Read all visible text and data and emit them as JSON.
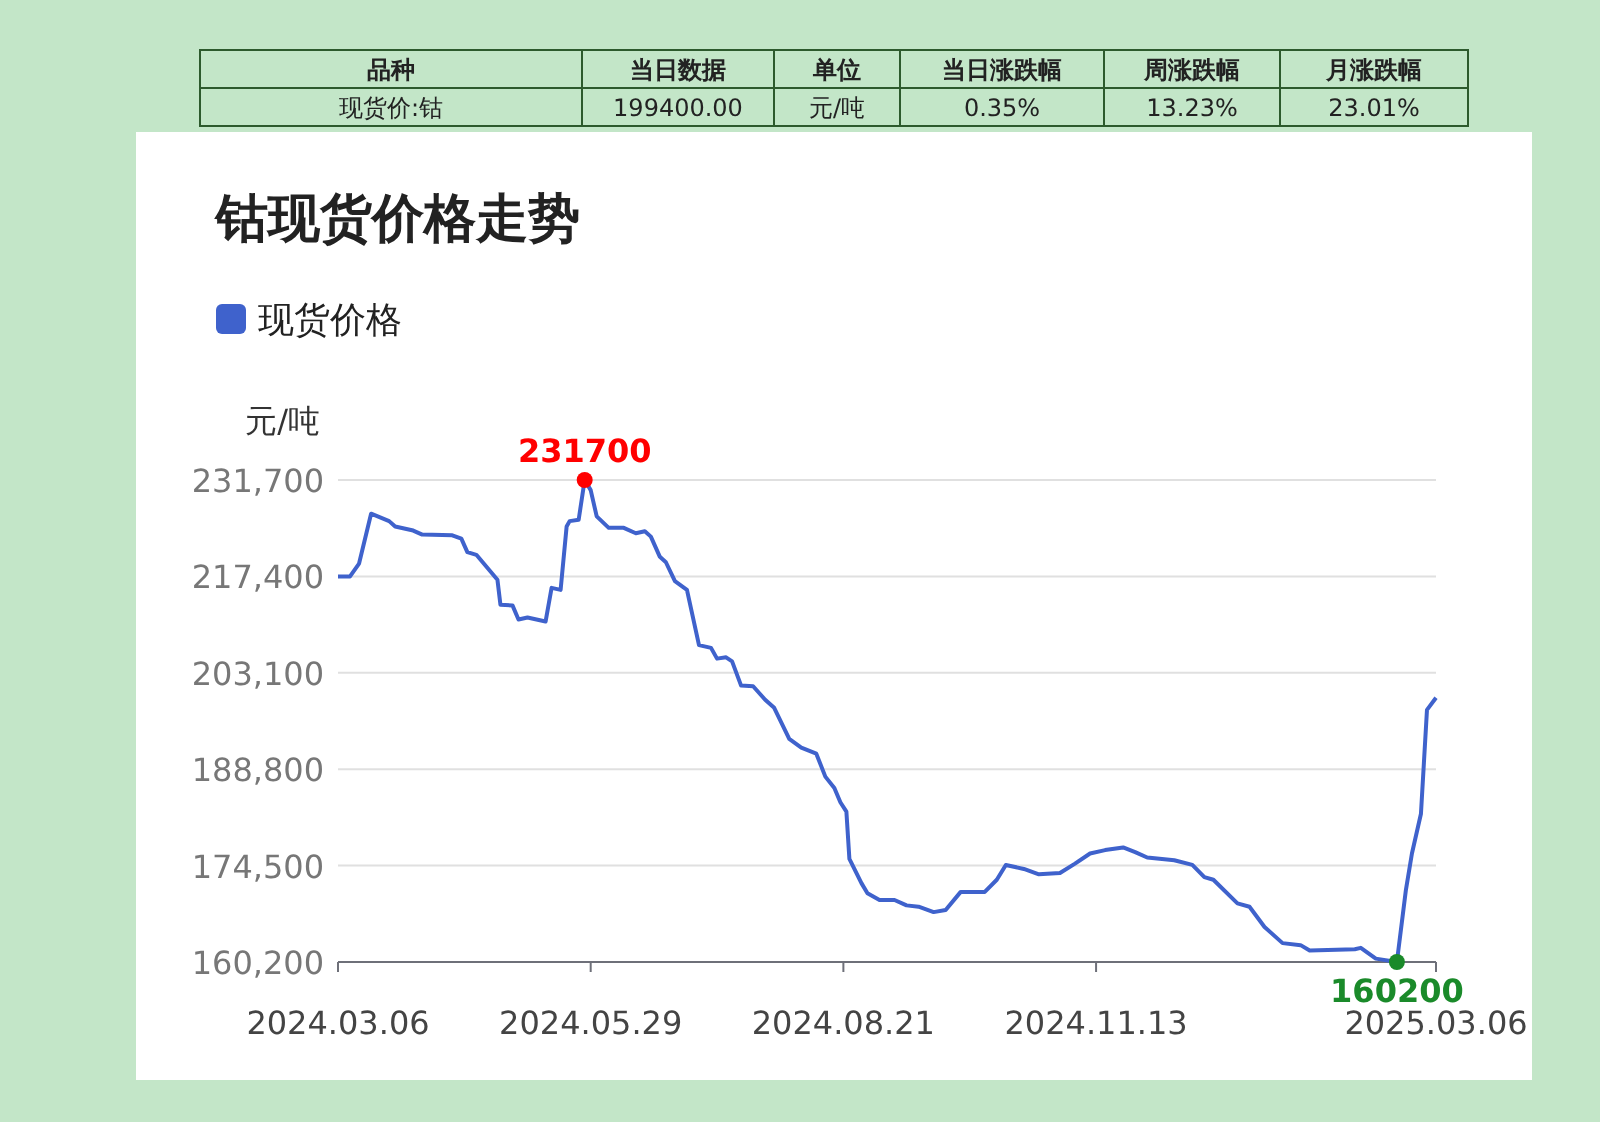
{
  "chart_data": [
    {
      "type": "other",
      "categories": [
        "品种",
        "当日数据",
        "单位",
        "当日涨跌幅",
        "周涨跌幅",
        "月涨跌幅"
      ],
      "annotations": [
        "现货价:钴",
        "199400.00",
        "元/吨",
        "0.35%",
        "13.23%",
        "23.01%"
      ]
    },
    {
      "type": "line",
      "title": "钴现货价格走势",
      "ylabel": "元/吨",
      "legend": "top left",
      "grid": "y",
      "marker": "none",
      "ylim": [
        160200,
        231700
      ],
      "yticks": [
        {
          "value": 160200,
          "label": "160,200"
        },
        {
          "value": 174500,
          "label": "174,500"
        },
        {
          "value": 188800,
          "label": "188,800"
        },
        {
          "value": 203100,
          "label": "203,100"
        },
        {
          "value": 217400,
          "label": "217,400"
        },
        {
          "value": 231700,
          "label": "231,700"
        }
      ],
      "xlim": [
        "2024-03-06",
        "2025-03-06"
      ],
      "xticks": [
        {
          "value": "2024-03-06",
          "label": "2024.03.06"
        },
        {
          "value": "2024-05-29",
          "label": "2024.05.29"
        },
        {
          "value": "2024-08-21",
          "label": "2024.08.21"
        },
        {
          "value": "2024-11-13",
          "label": "2024.11.13"
        },
        {
          "value": "2025-03-06",
          "label": "2025.03.06"
        }
      ],
      "annotations": [
        {
          "text": "231700",
          "x": "2024-05-27",
          "y": 231700
        },
        {
          "text": "160200",
          "x": "2025-02-21",
          "y": 160200
        }
      ],
      "series": [
        {
          "name": "现货价格",
          "color": "#3f62cc",
          "x": [
            "2024-03-06",
            "2024-03-10",
            "2024-03-13",
            "2024-03-17",
            "2024-03-23",
            "2024-03-25",
            "2024-03-31",
            "2024-04-03",
            "2024-04-13",
            "2024-04-16",
            "2024-04-18",
            "2024-04-21",
            "2024-04-28",
            "2024-04-29",
            "2024-05-03",
            "2024-05-05",
            "2024-05-08",
            "2024-05-14",
            "2024-05-16",
            "2024-05-19",
            "2024-05-21",
            "2024-05-22",
            "2024-05-25",
            "2024-05-27",
            "2024-05-29",
            "2024-05-31",
            "2024-06-04",
            "2024-06-09",
            "2024-06-13",
            "2024-06-16",
            "2024-06-18",
            "2024-06-21",
            "2024-06-23",
            "2024-06-26",
            "2024-06-30",
            "2024-07-04",
            "2024-07-08",
            "2024-07-10",
            "2024-07-13",
            "2024-07-15",
            "2024-07-18",
            "2024-07-22",
            "2024-07-26",
            "2024-07-29",
            "2024-08-03",
            "2024-08-07",
            "2024-08-12",
            "2024-08-15",
            "2024-08-18",
            "2024-08-20",
            "2024-08-22",
            "2024-08-23",
            "2024-08-27",
            "2024-08-29",
            "2024-09-02",
            "2024-09-07",
            "2024-09-11",
            "2024-09-15",
            "2024-09-20",
            "2024-09-24",
            "2024-09-29",
            "2024-10-07",
            "2024-10-11",
            "2024-10-14",
            "2024-10-20",
            "2024-10-25",
            "2024-11-01",
            "2024-11-06",
            "2024-11-11",
            "2024-11-16",
            "2024-11-22",
            "2024-11-26",
            "2024-11-30",
            "2024-12-09",
            "2024-12-15",
            "2024-12-19",
            "2024-12-22",
            "2024-12-30",
            "2025-01-03",
            "2025-01-08",
            "2025-01-14",
            "2025-01-20",
            "2025-01-23",
            "2025-02-07",
            "2025-02-09",
            "2025-02-14",
            "2025-02-21",
            "2025-02-24",
            "2025-02-26",
            "2025-03-01",
            "2025-03-03",
            "2025-03-06"
          ],
          "values": [
            217400,
            217400,
            219300,
            226700,
            225600,
            224800,
            224200,
            223600,
            223500,
            223000,
            221000,
            220600,
            216900,
            213200,
            213100,
            211000,
            211300,
            210700,
            215700,
            215400,
            224800,
            225600,
            225800,
            231700,
            230200,
            226300,
            224600,
            224600,
            223800,
            224100,
            223300,
            220300,
            219500,
            216700,
            215400,
            207200,
            206800,
            205200,
            205400,
            204800,
            201200,
            201100,
            199100,
            197900,
            193300,
            192000,
            191100,
            187700,
            186000,
            183900,
            182500,
            175500,
            171900,
            170400,
            169400,
            169400,
            168600,
            168400,
            167600,
            167900,
            170600,
            170600,
            172400,
            174600,
            174000,
            173200,
            173400,
            174800,
            176300,
            176800,
            177200,
            176500,
            175700,
            175300,
            174600,
            172800,
            172400,
            168900,
            168400,
            165400,
            163000,
            162700,
            161900,
            162100,
            162300,
            160700,
            160200,
            170900,
            176300,
            182200,
            197600,
            199400
          ]
        }
      ]
    }
  ]
}
